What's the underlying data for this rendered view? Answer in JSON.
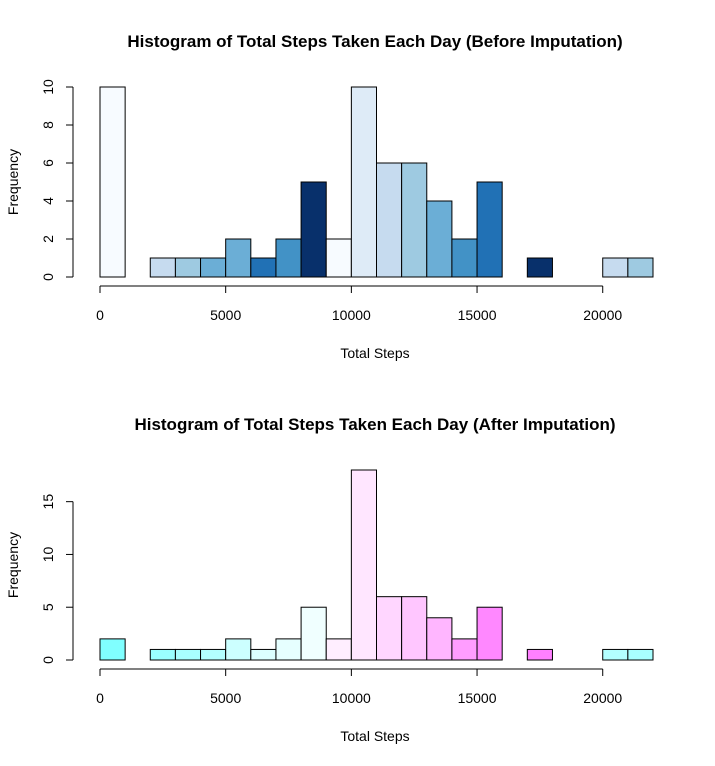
{
  "chart_data": [
    {
      "type": "bar",
      "title": "Histogram of Total Steps Taken Each Day (Before Imputation)",
      "xlabel": "Total Steps",
      "ylabel": "Frequency",
      "bin_width": 1000,
      "x": [
        0,
        1000,
        2000,
        3000,
        4000,
        5000,
        6000,
        7000,
        8000,
        9000,
        10000,
        11000,
        12000,
        13000,
        14000,
        15000,
        16000,
        17000,
        18000,
        19000,
        20000,
        21000
      ],
      "values": [
        10,
        0,
        1,
        1,
        1,
        2,
        1,
        2,
        5,
        2,
        10,
        6,
        6,
        4,
        2,
        5,
        0,
        1,
        0,
        0,
        1,
        1
      ],
      "colors": [
        "#F7FBFF",
        "#FFFFFF",
        "#C6DBEF",
        "#9ECAE1",
        "#6BAED6",
        "#6BAED6",
        "#2171B5",
        "#4292C6",
        "#08306B",
        "#F7FBFF",
        "#DEEBF7",
        "#C6DBEF",
        "#9ECAE1",
        "#6BAED6",
        "#4292C6",
        "#2171B5",
        "#FFFFFF",
        "#08306B",
        "#FFFFFF",
        "#FFFFFF",
        "#C6DBEF",
        "#9ECAE1"
      ],
      "xticks": [
        "0",
        "5000",
        "10000",
        "15000",
        "20000"
      ],
      "xtick_values": [
        0,
        5000,
        10000,
        15000,
        20000
      ],
      "yticks": [
        "0",
        "2",
        "4",
        "6",
        "8",
        "10"
      ],
      "ytick_values": [
        0,
        2,
        4,
        6,
        8,
        10
      ],
      "xlim": [
        0,
        22000
      ],
      "ylim": [
        0,
        10
      ]
    },
    {
      "type": "bar",
      "title": "Histogram of Total Steps Taken Each Day (After Imputation)",
      "xlabel": "Total Steps",
      "ylabel": "Frequency",
      "bin_width": 1000,
      "x": [
        0,
        1000,
        2000,
        3000,
        4000,
        5000,
        6000,
        7000,
        8000,
        9000,
        10000,
        11000,
        12000,
        13000,
        14000,
        15000,
        16000,
        17000,
        18000,
        19000,
        20000,
        21000
      ],
      "values": [
        2,
        0,
        1,
        1,
        1,
        2,
        1,
        2,
        5,
        2,
        18,
        6,
        6,
        4,
        2,
        5,
        0,
        1,
        0,
        0,
        1,
        1
      ],
      "colors": [
        "#80FFFF",
        "#FFFFFF",
        "#9AFFFF",
        "#A8FFFF",
        "#B3FFFF",
        "#CCFFFF",
        "#DCFFFF",
        "#E6FFFF",
        "#F0FFFF",
        "#FFEEFF",
        "#FFE6FF",
        "#FFD6FF",
        "#FFC6FF",
        "#FFB6FF",
        "#FF9DFF",
        "#FF88FF",
        "#FFFFFF",
        "#FF80FF",
        "#FFFFFF",
        "#FFFFFF",
        "#B3FFFF",
        "#A8FFFF"
      ],
      "xticks": [
        "0",
        "5000",
        "10000",
        "15000",
        "20000"
      ],
      "xtick_values": [
        0,
        5000,
        10000,
        15000,
        20000
      ],
      "yticks": [
        "0",
        "5",
        "10",
        "15"
      ],
      "ytick_values": [
        0,
        5,
        10,
        15
      ],
      "xlim": [
        0,
        22000
      ],
      "ylim": [
        0,
        18
      ]
    }
  ]
}
